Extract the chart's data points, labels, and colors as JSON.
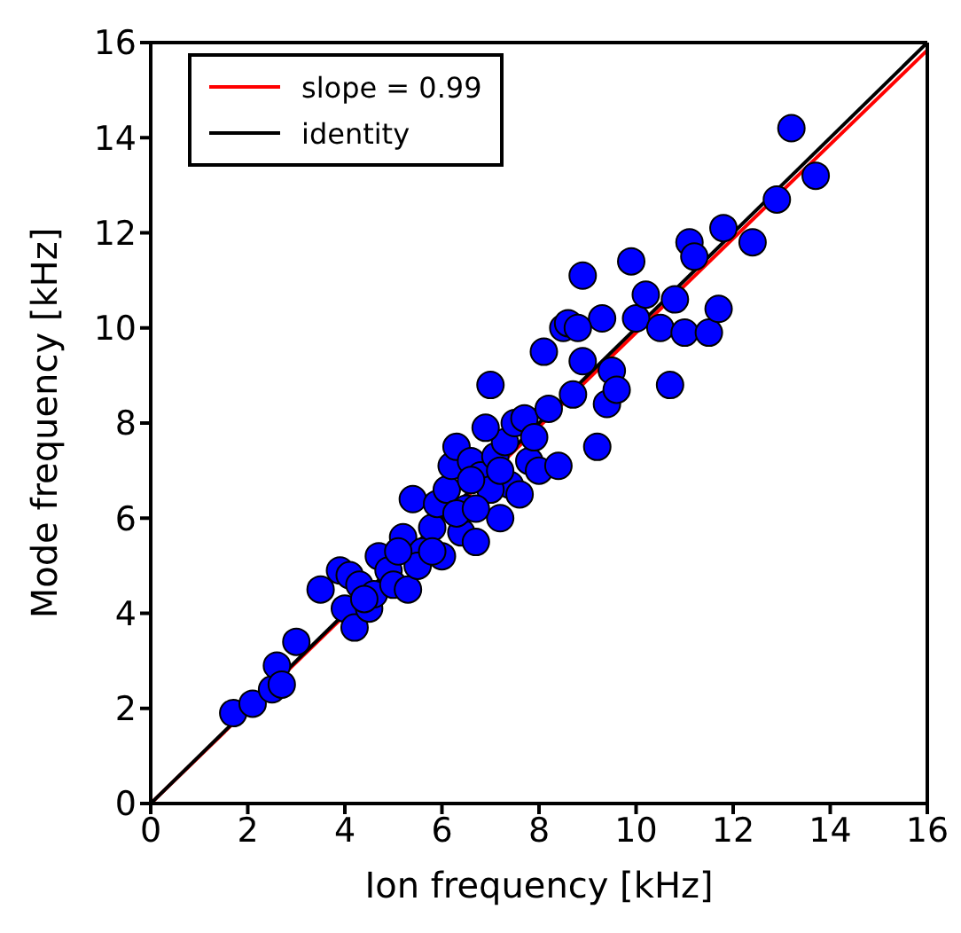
{
  "chart_data": {
    "type": "scatter",
    "xlabel": "Ion frequency [kHz]",
    "ylabel": "Mode frequency [kHz]",
    "xlim": [
      0,
      16
    ],
    "ylim": [
      0,
      16
    ],
    "xticks": [
      0,
      2,
      4,
      6,
      8,
      10,
      12,
      14,
      16
    ],
    "yticks": [
      0,
      2,
      4,
      6,
      8,
      10,
      12,
      14,
      16
    ],
    "legend": "top left",
    "series": [
      {
        "type": "scatter",
        "color": "#0000ff",
        "marker": "circle",
        "x": [
          1.7,
          2.1,
          2.5,
          2.6,
          2.7,
          3.0,
          3.5,
          3.9,
          4.0,
          4.1,
          4.2,
          4.3,
          4.5,
          4.6,
          4.7,
          4.9,
          5.0,
          5.2,
          5.3,
          5.4,
          5.6,
          5.8,
          5.9,
          6.0,
          6.1,
          6.2,
          6.3,
          6.4,
          6.5,
          6.6,
          6.7,
          6.8,
          7.0,
          7.1,
          7.2,
          7.3,
          7.4,
          7.5,
          7.6,
          7.7,
          7.8,
          8.0,
          8.1,
          8.2,
          8.4,
          8.5,
          8.7,
          8.9,
          8.9,
          9.2,
          9.3,
          9.4,
          9.5,
          9.6,
          9.9,
          10.0,
          10.2,
          10.5,
          10.7,
          10.8,
          11.0,
          11.1,
          11.2,
          11.5,
          11.7,
          11.8,
          12.4,
          12.9,
          13.2,
          13.7,
          8.6,
          8.8,
          7.0,
          6.6,
          5.5,
          5.8,
          6.3,
          7.2,
          7.9,
          4.4,
          5.1,
          6.9,
          6.7
        ],
        "values": [
          1.9,
          2.1,
          2.4,
          2.9,
          2.5,
          3.4,
          4.5,
          4.9,
          4.1,
          4.8,
          3.7,
          4.6,
          4.1,
          4.4,
          5.2,
          4.9,
          4.6,
          5.6,
          4.5,
          6.4,
          5.3,
          5.8,
          6.3,
          5.2,
          6.6,
          7.1,
          7.5,
          5.7,
          6.2,
          7.2,
          5.5,
          6.9,
          8.8,
          7.3,
          6.0,
          7.6,
          6.7,
          8.0,
          6.5,
          8.1,
          7.2,
          7.0,
          9.5,
          8.3,
          7.1,
          10.0,
          8.6,
          9.3,
          11.1,
          7.5,
          10.2,
          8.4,
          9.1,
          8.7,
          11.4,
          10.2,
          10.7,
          10.0,
          8.8,
          10.6,
          9.9,
          11.8,
          11.5,
          9.9,
          10.4,
          12.1,
          11.8,
          12.7,
          14.2,
          13.2,
          10.1,
          10.0,
          6.6,
          6.8,
          5.0,
          5.3,
          6.1,
          7.0,
          7.7,
          4.3,
          5.3,
          7.9,
          6.2
        ]
      },
      {
        "type": "line",
        "name": "slope = 0.99",
        "color": "#ff0000",
        "marker": "none",
        "x": [
          0,
          16
        ],
        "values": [
          0,
          15.84
        ]
      },
      {
        "type": "line",
        "name": "identity",
        "color": "#000000",
        "marker": "none",
        "x": [
          0,
          16
        ],
        "values": [
          0,
          16
        ]
      }
    ]
  }
}
